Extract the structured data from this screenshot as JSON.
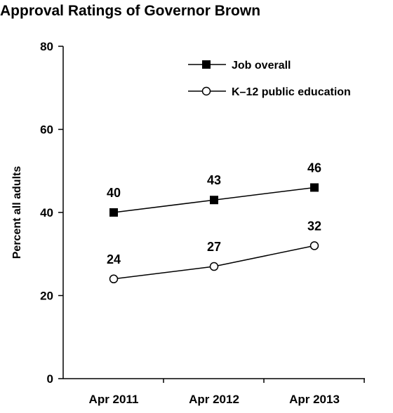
{
  "chart_data": {
    "type": "line",
    "title": "Approval Ratings of Governor Brown",
    "ylabel": "Percent all adults",
    "xlabel": "",
    "categories": [
      "Apr 2011",
      "Apr 2012",
      "Apr 2013"
    ],
    "ylim": [
      0,
      80
    ],
    "yticks": [
      0,
      20,
      40,
      60,
      80
    ],
    "grid": false,
    "legend_position": "top-right",
    "series": [
      {
        "name": "Job overall",
        "values": [
          40,
          43,
          46
        ],
        "labels": [
          "40",
          "43",
          "46"
        ],
        "marker": "filled-square",
        "color": "#000000"
      },
      {
        "name": "K–12 public education",
        "values": [
          24,
          27,
          32
        ],
        "labels": [
          "24",
          "27",
          "32"
        ],
        "marker": "open-circle",
        "color": "#000000"
      }
    ]
  }
}
